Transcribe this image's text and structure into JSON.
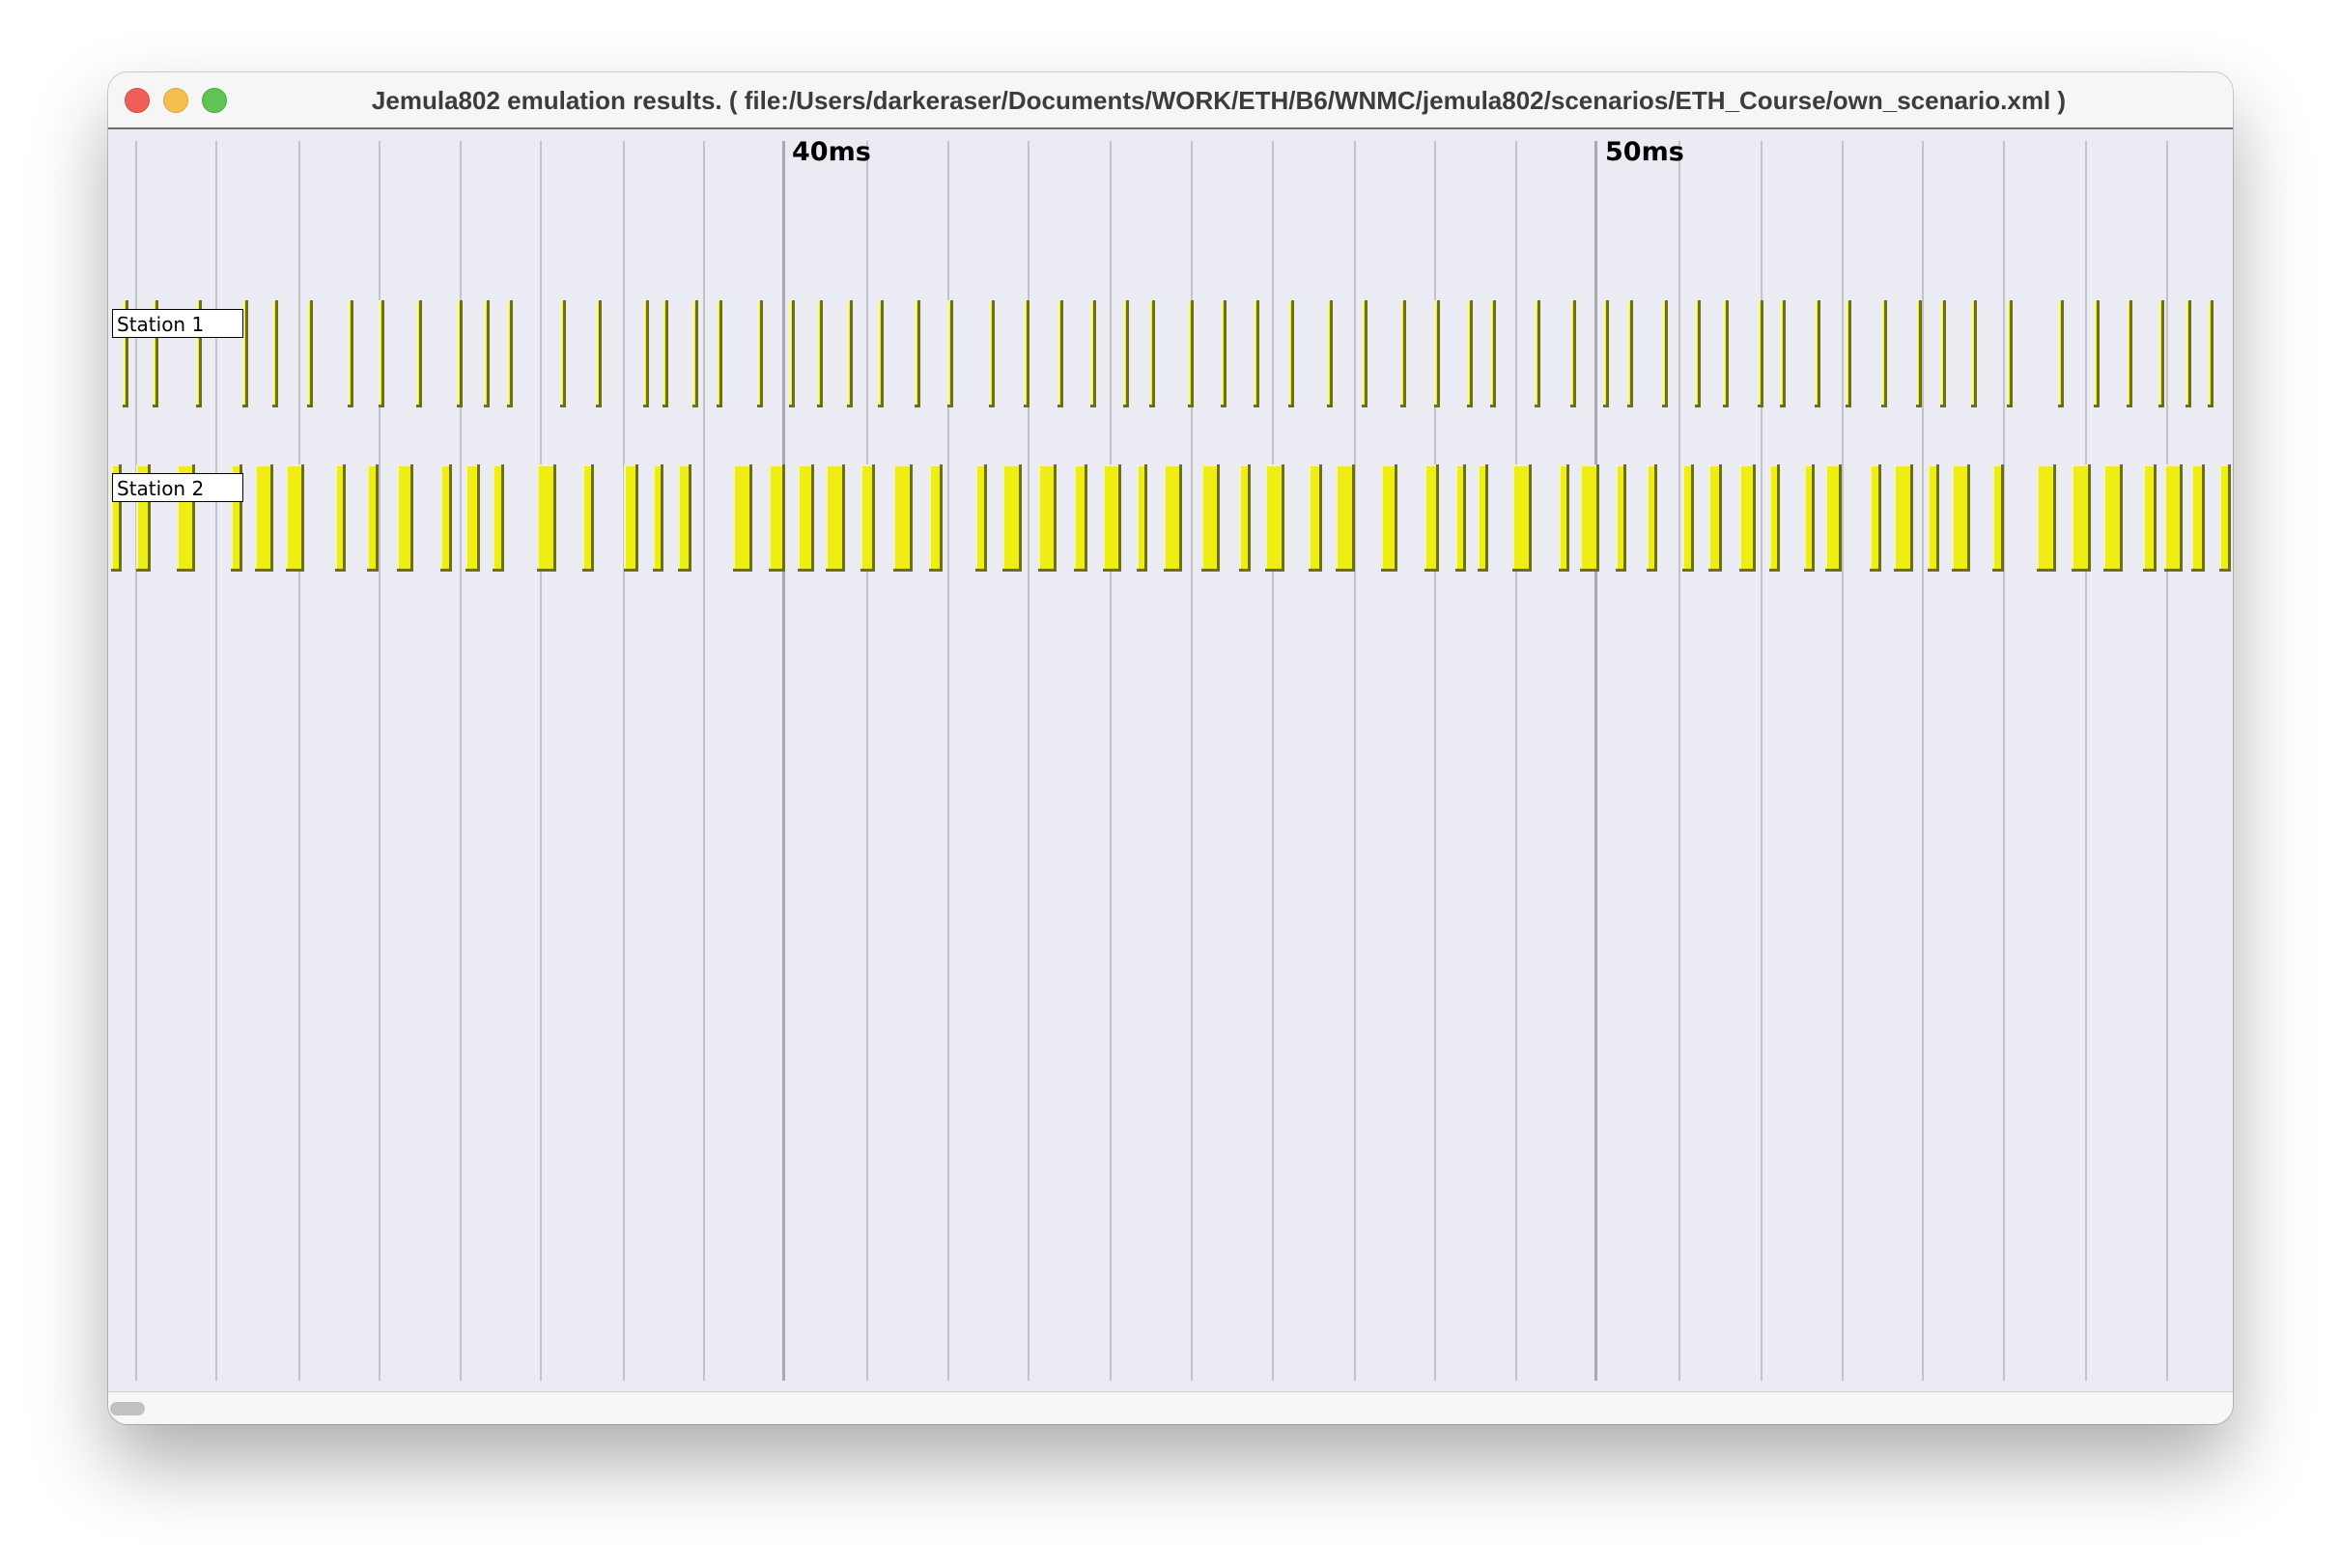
{
  "window": {
    "title": "Jemula802 emulation results. ( file:/Users/darkeraser/Documents/WORK/ETH/B6/WNMC/jemula802/scenarios/ETH_Course/own_scenario.xml )"
  },
  "timeline": {
    "labels": [
      "40ms",
      "50ms"
    ]
  },
  "stations": [
    {
      "label": "Station 1"
    },
    {
      "label": "Station 2"
    }
  ],
  "colors": {
    "frame": "#eeee12",
    "background": "#ebecf3",
    "gridline": "#c4c4c8"
  }
}
